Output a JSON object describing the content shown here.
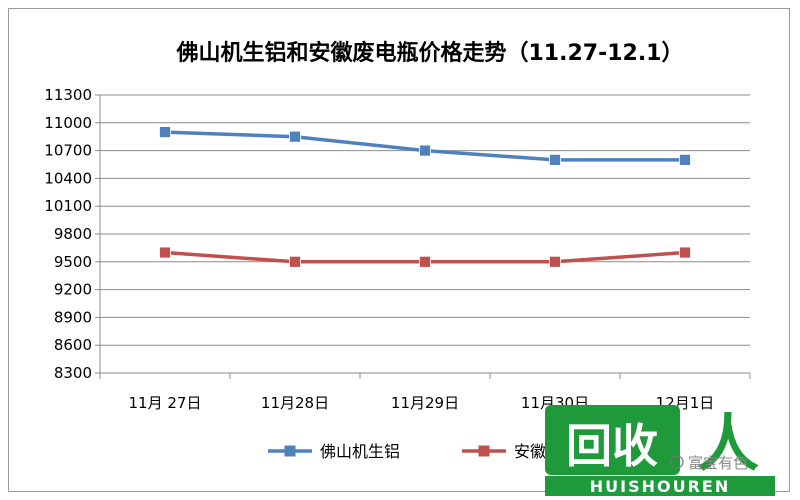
{
  "chart_data": {
    "type": "line",
    "title": "佛山机生铝和安徽废电瓶价格走势（11.27-12.1）",
    "xlabel": "",
    "ylabel": "",
    "categories": [
      "11月 27日",
      "11月28日",
      "11月29日",
      "11月30日",
      "12月1日"
    ],
    "ylim": [
      8300,
      11300
    ],
    "yticks": [
      8300,
      8600,
      8900,
      9200,
      9500,
      9800,
      10100,
      10400,
      10700,
      11000,
      11300
    ],
    "grid": "horizontal",
    "legend": "bottom",
    "series": [
      {
        "name": "佛山机生铝",
        "color": "#4f81bd",
        "values": [
          10900,
          10850,
          10700,
          10600,
          10600
        ]
      },
      {
        "name": "安徽废电瓶",
        "color": "#c0504d",
        "values": [
          9600,
          9500,
          9500,
          9500,
          9600
        ]
      }
    ]
  },
  "watermark": {
    "logo_text": "回收",
    "logo_letter": "人",
    "brand_latin": "HUISHOUREN",
    "wechat_text": "富宝有色",
    "color": "#1e9a3a"
  }
}
